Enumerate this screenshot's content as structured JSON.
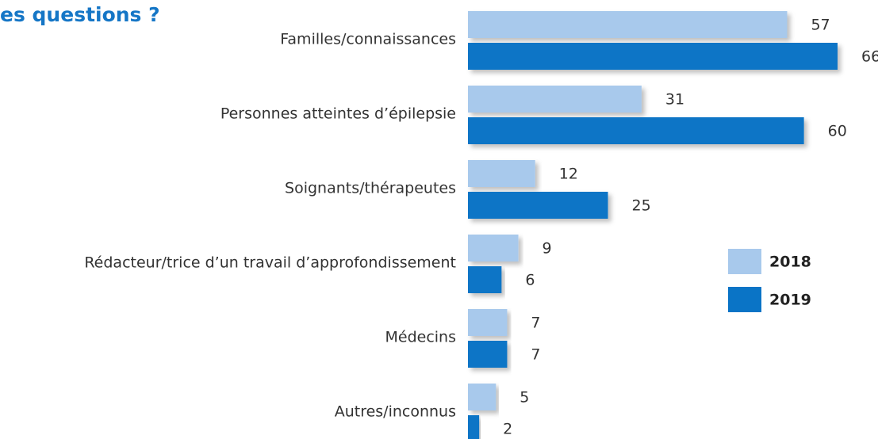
{
  "chart_data": {
    "type": "bar",
    "orientation": "horizontal",
    "title": "es questions ?",
    "categories": [
      "Familles/connaissances",
      "Personnes atteintes d’épilepsie",
      "Soignants/thérapeutes",
      "Rédacteur/trice d’un travail d’approfondissement",
      "Médecins",
      "Autres/inconnus"
    ],
    "series": [
      {
        "name": "2018",
        "color": "#a8c9ec",
        "values": [
          57,
          31,
          12,
          9,
          7,
          5
        ]
      },
      {
        "name": "2019",
        "color": "#0a74c6",
        "values": [
          66,
          60,
          25,
          6,
          7,
          2
        ]
      }
    ],
    "legend": "right"
  }
}
